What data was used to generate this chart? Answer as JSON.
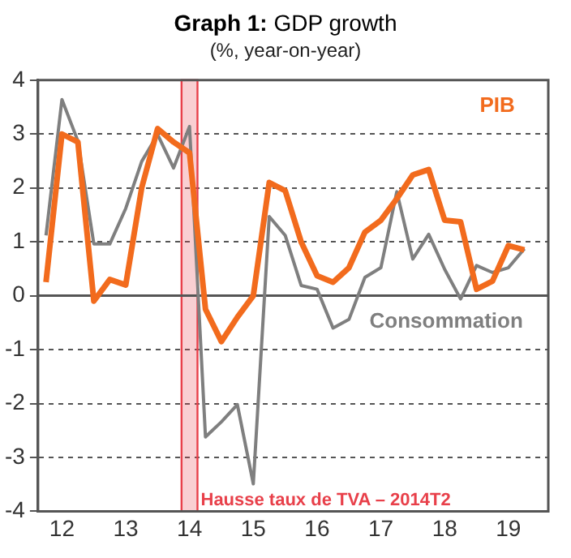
{
  "chart_data": {
    "type": "line",
    "title": "Graph 1: GDP growth",
    "subtitle": "(%, year-on-year)",
    "categories": [
      null,
      "12",
      null,
      null,
      null,
      "13",
      null,
      null,
      null,
      "14",
      null,
      null,
      null,
      "15",
      null,
      null,
      null,
      "16",
      null,
      null,
      null,
      "17",
      null,
      null,
      null,
      "18",
      null,
      null,
      null,
      "19",
      null,
      null
    ],
    "series": [
      {
        "name": "PIB",
        "color": "#f26b1d",
        "values": [
          0.25,
          3.0,
          2.85,
          -0.1,
          0.3,
          0.2,
          2.0,
          3.1,
          2.85,
          2.65,
          -0.25,
          -0.85,
          -0.4,
          0.0,
          2.1,
          1.95,
          1.0,
          0.37,
          0.25,
          0.52,
          1.18,
          1.4,
          1.8,
          2.24,
          2.34,
          1.4,
          1.37,
          0.12,
          0.27,
          0.93,
          0.85,
          null
        ]
      },
      {
        "name": "Consommation",
        "color": "#7f7f7f",
        "values": [
          1.12,
          3.64,
          2.87,
          0.96,
          0.96,
          1.62,
          2.49,
          2.99,
          2.37,
          3.14,
          -2.62,
          -2.34,
          -2.02,
          -3.49,
          1.47,
          1.12,
          0.19,
          0.12,
          -0.6,
          -0.44,
          0.34,
          0.52,
          1.93,
          0.68,
          1.14,
          0.49,
          -0.06,
          0.56,
          0.43,
          0.52,
          0.87,
          null
        ]
      }
    ],
    "ylim": [
      -4,
      4
    ],
    "yticks": [
      -4,
      -3,
      -2,
      -1,
      0,
      1,
      2,
      3,
      4
    ],
    "bands": [
      {
        "axis": "x",
        "from": "14",
        "to": "14",
        "label": "Hausse taux de TVA – 2014T2",
        "color": "#e8404a"
      }
    ],
    "grid": "y",
    "legend": false,
    "marker": "none",
    "line_style": "solid"
  }
}
